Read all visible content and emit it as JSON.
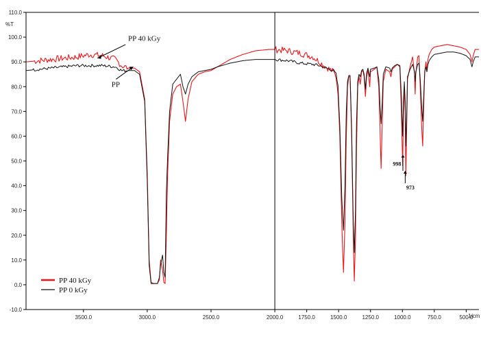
{
  "chart_data": {
    "type": "line",
    "title": "",
    "xlabel": "1/cm",
    "ylabel": "%T",
    "xlim": [
      3950,
      400
    ],
    "ylim": [
      -10,
      110
    ],
    "x_ticks": [
      3500,
      3000,
      2500,
      2000,
      1750,
      1500,
      1250,
      1000,
      750,
      500
    ],
    "x_tick_labels": [
      "3500.0",
      "3000.0",
      "2500.0",
      "2000.0",
      "1750.0",
      "1500.0",
      "1250.0",
      "1000.0",
      "750.0",
      "500.0"
    ],
    "y_ticks": [
      -10,
      0,
      10,
      20,
      30,
      40,
      50,
      60,
      70,
      80,
      90,
      100,
      110
    ],
    "y_tick_labels": [
      "-10.0",
      "0.0",
      "10.0",
      "20.0",
      "30.0",
      "40.0",
      "50.0",
      "60.0",
      "70.0",
      "80.0",
      "90.0",
      "100.0",
      "110.0"
    ],
    "legend_position": "bottom-left",
    "series": [
      {
        "name": "PP  40 kGy",
        "color": "#e8161b",
        "points": [
          [
            3950,
            90
          ],
          [
            3850,
            90.5
          ],
          [
            3750,
            91
          ],
          [
            3650,
            91.5
          ],
          [
            3550,
            92
          ],
          [
            3450,
            93
          ],
          [
            3350,
            92.5
          ],
          [
            3250,
            91
          ],
          [
            3200,
            88.5
          ],
          [
            3150,
            87.5
          ],
          [
            3100,
            87.5
          ],
          [
            3060,
            86
          ],
          [
            3020,
            75
          ],
          [
            3000,
            45
          ],
          [
            2985,
            10
          ],
          [
            2970,
            1
          ],
          [
            2950,
            0.5
          ],
          [
            2935,
            0.5
          ],
          [
            2920,
            0.5
          ],
          [
            2905,
            2
          ],
          [
            2895,
            10
          ],
          [
            2880,
            6
          ],
          [
            2870,
            1
          ],
          [
            2860,
            0.5
          ],
          [
            2850,
            20
          ],
          [
            2840,
            45
          ],
          [
            2825,
            66
          ],
          [
            2800,
            77
          ],
          [
            2770,
            80
          ],
          [
            2740,
            81
          ],
          [
            2720,
            74
          ],
          [
            2700,
            66
          ],
          [
            2680,
            75
          ],
          [
            2650,
            82
          ],
          [
            2600,
            85
          ],
          [
            2550,
            86
          ],
          [
            2500,
            86.5
          ],
          [
            2450,
            88
          ],
          [
            2350,
            91
          ],
          [
            2250,
            93
          ],
          [
            2150,
            94.5
          ],
          [
            2050,
            95
          ],
          [
            2000,
            95
          ],
          [
            1900,
            94.5
          ],
          [
            1800,
            93.5
          ],
          [
            1700,
            92
          ],
          [
            1650,
            90
          ],
          [
            1600,
            88
          ],
          [
            1570,
            87
          ],
          [
            1540,
            86
          ],
          [
            1520,
            84
          ],
          [
            1505,
            78
          ],
          [
            1490,
            60
          ],
          [
            1475,
            25
          ],
          [
            1462,
            5
          ],
          [
            1450,
            25
          ],
          [
            1440,
            60
          ],
          [
            1430,
            80
          ],
          [
            1420,
            84
          ],
          [
            1410,
            84
          ],
          [
            1398,
            60
          ],
          [
            1385,
            20
          ],
          [
            1377,
            1.5
          ],
          [
            1368,
            18
          ],
          [
            1360,
            55
          ],
          [
            1350,
            80
          ],
          [
            1340,
            84
          ],
          [
            1330,
            81
          ],
          [
            1320,
            86
          ],
          [
            1310,
            86.5
          ],
          [
            1300,
            84
          ],
          [
            1290,
            76
          ],
          [
            1280,
            84
          ],
          [
            1270,
            87
          ],
          [
            1256,
            80
          ],
          [
            1250,
            86
          ],
          [
            1220,
            87
          ],
          [
            1200,
            88
          ],
          [
            1185,
            80
          ],
          [
            1175,
            62
          ],
          [
            1167,
            47
          ],
          [
            1158,
            65
          ],
          [
            1150,
            82
          ],
          [
            1130,
            87
          ],
          [
            1100,
            86
          ],
          [
            1090,
            84
          ],
          [
            1080,
            87
          ],
          [
            1060,
            88
          ],
          [
            1040,
            89
          ],
          [
            1020,
            88
          ],
          [
            1008,
            70
          ],
          [
            998,
            48
          ],
          [
            992,
            68
          ],
          [
            985,
            80
          ],
          [
            978,
            70
          ],
          [
            973,
            44
          ],
          [
            966,
            65
          ],
          [
            960,
            83
          ],
          [
            940,
            88
          ],
          [
            920,
            92
          ],
          [
            905,
            85
          ],
          [
            900,
            77
          ],
          [
            895,
            85
          ],
          [
            880,
            92
          ],
          [
            870,
            92.5
          ],
          [
            860,
            80
          ],
          [
            850,
            65
          ],
          [
            841,
            56
          ],
          [
            834,
            70
          ],
          [
            825,
            86
          ],
          [
            815,
            90
          ],
          [
            808,
            86
          ],
          [
            800,
            91
          ],
          [
            790,
            93
          ],
          [
            770,
            95
          ],
          [
            750,
            96
          ],
          [
            700,
            96.5
          ],
          [
            650,
            97
          ],
          [
            600,
            96.5
          ],
          [
            550,
            96
          ],
          [
            500,
            95
          ],
          [
            470,
            93
          ],
          [
            455,
            90
          ],
          [
            445,
            92.5
          ],
          [
            430,
            95
          ],
          [
            400,
            95
          ]
        ]
      },
      {
        "name": "PP  0 kGy",
        "color": "#111111",
        "points": [
          [
            3950,
            86.5
          ],
          [
            3850,
            87
          ],
          [
            3750,
            87.5
          ],
          [
            3650,
            88
          ],
          [
            3550,
            88.5
          ],
          [
            3450,
            88.5
          ],
          [
            3350,
            88.5
          ],
          [
            3250,
            88
          ],
          [
            3200,
            86.5
          ],
          [
            3150,
            86.5
          ],
          [
            3100,
            86.5
          ],
          [
            3060,
            85
          ],
          [
            3020,
            74
          ],
          [
            3000,
            42
          ],
          [
            2985,
            8
          ],
          [
            2970,
            0.5
          ],
          [
            2950,
            0.5
          ],
          [
            2935,
            0.5
          ],
          [
            2920,
            0.5
          ],
          [
            2905,
            3
          ],
          [
            2895,
            8
          ],
          [
            2880,
            12
          ],
          [
            2870,
            5
          ],
          [
            2860,
            3
          ],
          [
            2850,
            37
          ],
          [
            2840,
            52
          ],
          [
            2825,
            70
          ],
          [
            2800,
            81
          ],
          [
            2770,
            83
          ],
          [
            2740,
            85
          ],
          [
            2720,
            80
          ],
          [
            2700,
            77
          ],
          [
            2680,
            81
          ],
          [
            2650,
            84
          ],
          [
            2600,
            86
          ],
          [
            2550,
            86.5
          ],
          [
            2500,
            87
          ],
          [
            2450,
            88
          ],
          [
            2350,
            89.5
          ],
          [
            2250,
            90.5
          ],
          [
            2150,
            91
          ],
          [
            2050,
            91
          ],
          [
            2000,
            91
          ],
          [
            1900,
            90.5
          ],
          [
            1800,
            89.5
          ],
          [
            1700,
            89
          ],
          [
            1650,
            88.5
          ],
          [
            1600,
            87.5
          ],
          [
            1570,
            87
          ],
          [
            1540,
            86.5
          ],
          [
            1520,
            85
          ],
          [
            1505,
            80
          ],
          [
            1490,
            64
          ],
          [
            1475,
            35
          ],
          [
            1462,
            22
          ],
          [
            1450,
            40
          ],
          [
            1440,
            70
          ],
          [
            1430,
            82
          ],
          [
            1420,
            84.5
          ],
          [
            1410,
            84.5
          ],
          [
            1398,
            63
          ],
          [
            1385,
            25
          ],
          [
            1377,
            13
          ],
          [
            1368,
            30
          ],
          [
            1360,
            65
          ],
          [
            1350,
            82
          ],
          [
            1340,
            85
          ],
          [
            1330,
            84
          ],
          [
            1320,
            86.5
          ],
          [
            1310,
            87
          ],
          [
            1300,
            85
          ],
          [
            1290,
            79
          ],
          [
            1280,
            85.5
          ],
          [
            1270,
            87.5
          ],
          [
            1256,
            84
          ],
          [
            1250,
            87
          ],
          [
            1220,
            87.5
          ],
          [
            1200,
            88
          ],
          [
            1185,
            83
          ],
          [
            1175,
            72
          ],
          [
            1167,
            65
          ],
          [
            1158,
            74
          ],
          [
            1150,
            85
          ],
          [
            1130,
            88
          ],
          [
            1100,
            87.5
          ],
          [
            1090,
            86
          ],
          [
            1080,
            87.5
          ],
          [
            1060,
            88.5
          ],
          [
            1040,
            89
          ],
          [
            1020,
            88.5
          ],
          [
            1008,
            76
          ],
          [
            998,
            60
          ],
          [
            992,
            74
          ],
          [
            985,
            82
          ],
          [
            978,
            74
          ],
          [
            973,
            56
          ],
          [
            966,
            70
          ],
          [
            960,
            84
          ],
          [
            940,
            87
          ],
          [
            920,
            89
          ],
          [
            905,
            86
          ],
          [
            900,
            82
          ],
          [
            895,
            86
          ],
          [
            880,
            89
          ],
          [
            870,
            89.5
          ],
          [
            860,
            83
          ],
          [
            850,
            73
          ],
          [
            841,
            66
          ],
          [
            834,
            75
          ],
          [
            825,
            86
          ],
          [
            815,
            88
          ],
          [
            808,
            86
          ],
          [
            800,
            89
          ],
          [
            790,
            90.5
          ],
          [
            770,
            92
          ],
          [
            750,
            93
          ],
          [
            700,
            93.5
          ],
          [
            650,
            94
          ],
          [
            600,
            94
          ],
          [
            550,
            93.5
          ],
          [
            500,
            92.5
          ],
          [
            470,
            91
          ],
          [
            455,
            88
          ],
          [
            445,
            90
          ],
          [
            430,
            92
          ],
          [
            400,
            92
          ]
        ]
      }
    ],
    "annotations": [
      {
        "text": "PP  40 kGy",
        "x": 3150,
        "y": 98.5
      },
      {
        "text": "PP",
        "x": 3280,
        "y": 80
      },
      {
        "text": "998",
        "x": 1075,
        "y": 48
      },
      {
        "text": "973",
        "x": 970,
        "y": 38.5
      }
    ]
  }
}
